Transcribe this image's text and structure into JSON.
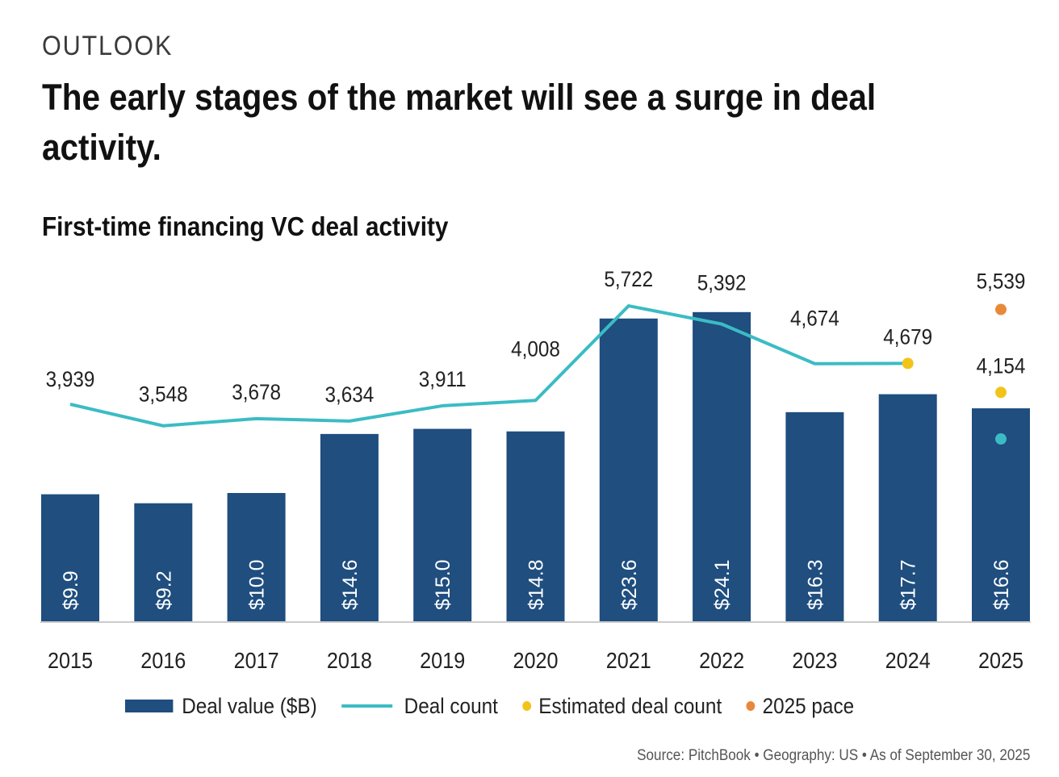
{
  "header": {
    "eyebrow": "OUTLOOK",
    "headline": "The early stages of the market will see a surge in deal activity.",
    "subtitle": "First-time financing VC deal activity"
  },
  "colors": {
    "bar": "#1f4e7f",
    "line": "#3bbcc4",
    "estimated": "#f2c41a",
    "pace": "#e8893a",
    "baseline": "#cccccc"
  },
  "chart_data": {
    "type": "bar",
    "title": "First-time financing VC deal activity",
    "xlabel": "",
    "ylabel": "",
    "categories": [
      "2015",
      "2016",
      "2017",
      "2018",
      "2019",
      "2020",
      "2021",
      "2022",
      "2023",
      "2024",
      "2025"
    ],
    "series": [
      {
        "name": "Deal value ($B)",
        "type": "bar",
        "values": [
          9.9,
          9.2,
          10.0,
          14.6,
          15.0,
          14.8,
          23.6,
          24.1,
          16.3,
          17.7,
          16.6
        ],
        "labels": [
          "$9.9",
          "$9.2",
          "$10.0",
          "$14.6",
          "$15.0",
          "$14.8",
          "$23.6",
          "$24.1",
          "$16.3",
          "$17.7",
          "$16.6"
        ]
      },
      {
        "name": "Deal count",
        "type": "line",
        "values": [
          3939,
          3548,
          3678,
          3634,
          3911,
          4008,
          5722,
          5392,
          4674,
          null,
          null
        ],
        "labels": [
          "3,939",
          "3,548",
          "3,678",
          "3,634",
          "3,911",
          "4,008",
          "5,722",
          "5,392",
          "4,674",
          "",
          ""
        ],
        "note_2024_line_end": 4679,
        "ytd_2025_point": 3310
      },
      {
        "name": "Estimated deal count",
        "type": "scatter",
        "values": [
          null,
          null,
          null,
          null,
          null,
          null,
          null,
          null,
          null,
          4679,
          4154
        ],
        "labels": [
          "",
          "",
          "",
          "",
          "",
          "",
          "",
          "",
          "",
          "4,679",
          "4,154"
        ]
      },
      {
        "name": "2025 pace",
        "type": "scatter",
        "values": [
          null,
          null,
          null,
          null,
          null,
          null,
          null,
          null,
          null,
          null,
          5539
        ],
        "labels": [
          "",
          "",
          "",
          "",
          "",
          "",
          "",
          "",
          "",
          "",
          "5,539"
        ]
      }
    ],
    "value_axis_range": [
      0,
      25
    ],
    "count_axis_range": [
      0,
      6000
    ],
    "grid": false,
    "legend": {
      "placement": "bottom",
      "entries": [
        "Deal value ($B)",
        "Deal count",
        "Estimated deal count",
        "2025 pace"
      ]
    },
    "source": "Source: PitchBook  •  Geography: US  •  As of September 30, 2025"
  }
}
